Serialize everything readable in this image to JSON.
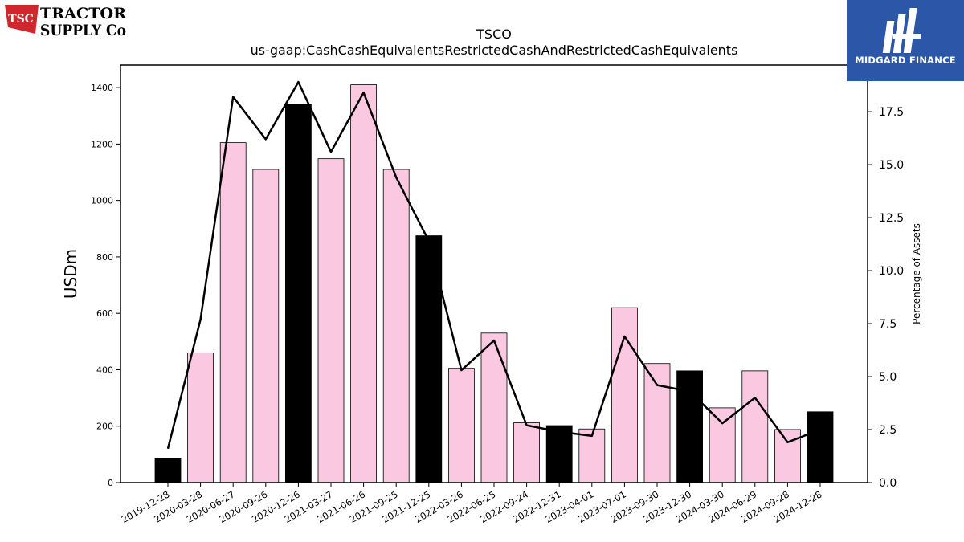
{
  "branding": {
    "company_logo_text_1": "TRACTOR",
    "company_logo_text_2": "SUPPLY Co",
    "company_logo_badge": "TSC",
    "company_logo_color": "#d0262e",
    "publisher_name": "MIDGARD FINANCE",
    "publisher_color": "#2c57a8"
  },
  "chart_data": {
    "type": "bar",
    "title": "TSCO",
    "subtitle": "us-gaap:CashCashEquivalentsRestrictedCashAndRestrictedCashEquivalents",
    "ylabel": "USDm",
    "y2label": "Percentage of Assets",
    "ylim": [
      0,
      1480
    ],
    "y2lim": [
      0,
      19.7
    ],
    "yticks": [
      0,
      200,
      400,
      600,
      800,
      1000,
      1200,
      1400
    ],
    "y2ticks": [
      "0.0",
      "2.5",
      "5.0",
      "7.5",
      "10.0",
      "12.5",
      "15.0",
      "17.5"
    ],
    "categories": [
      "2019-12-28",
      "2020-03-28",
      "2020-06-27",
      "2020-09-26",
      "2020-12-26",
      "2021-03-27",
      "2021-06-26",
      "2021-09-25",
      "2021-12-25",
      "2022-03-26",
      "2022-06-25",
      "2022-09-24",
      "2022-12-31",
      "2023-04-01",
      "2023-07-01",
      "2023-09-30",
      "2023-12-30",
      "2024-03-30",
      "2024-06-29",
      "2024-09-28",
      "2024-12-28"
    ],
    "series": [
      {
        "type": "bar",
        "values": [
          85,
          460,
          1205,
          1110,
          1342,
          1148,
          1410,
          1110,
          875,
          405,
          530,
          212,
          202,
          190,
          620,
          422,
          396,
          265,
          396,
          188,
          251
        ],
        "colors": [
          "#000000",
          "#fbc8e1",
          "#fbc8e1",
          "#fbc8e1",
          "#000000",
          "#fbc8e1",
          "#fbc8e1",
          "#fbc8e1",
          "#000000",
          "#fbc8e1",
          "#fbc8e1",
          "#fbc8e1",
          "#000000",
          "#fbc8e1",
          "#fbc8e1",
          "#fbc8e1",
          "#000000",
          "#fbc8e1",
          "#fbc8e1",
          "#fbc8e1",
          "#000000"
        ]
      },
      {
        "type": "line",
        "axis": "right",
        "color": "#000000",
        "values": [
          1.6,
          7.7,
          18.2,
          16.2,
          18.9,
          15.6,
          18.4,
          14.4,
          11.4,
          5.3,
          6.7,
          2.7,
          2.4,
          2.2,
          6.9,
          4.6,
          4.3,
          2.8,
          4.0,
          1.9,
          2.5
        ]
      }
    ]
  }
}
